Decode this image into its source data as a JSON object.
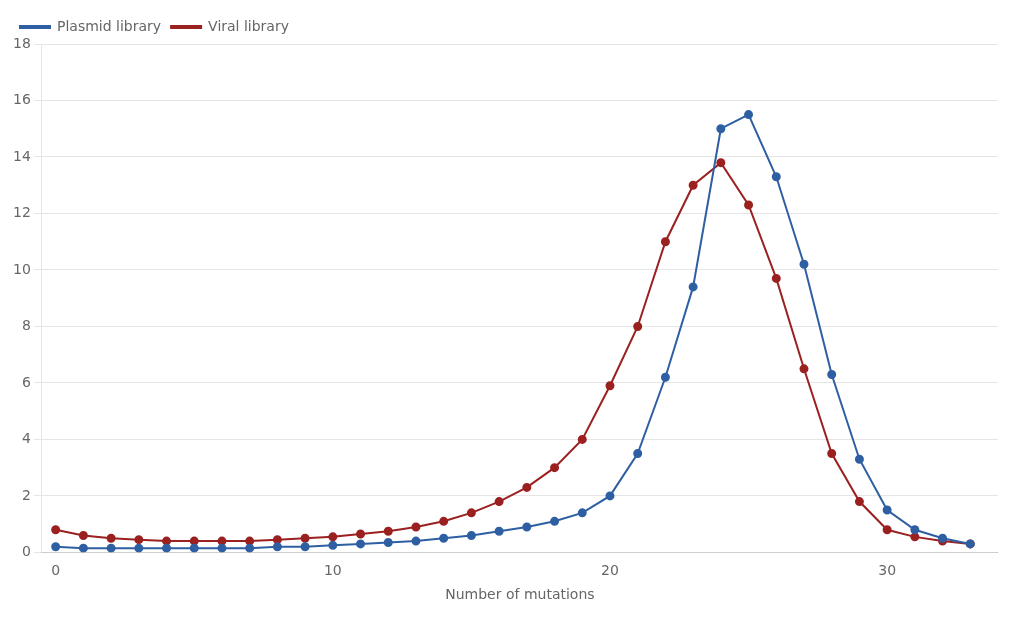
{
  "chart_data": {
    "type": "line",
    "xlabel": "Number of mutations",
    "x": [
      0,
      1,
      2,
      3,
      4,
      5,
      6,
      7,
      8,
      9,
      10,
      11,
      12,
      13,
      14,
      15,
      16,
      17,
      18,
      19,
      20,
      21,
      22,
      23,
      24,
      25,
      26,
      27,
      28,
      29,
      30,
      31,
      32,
      33
    ],
    "series": [
      {
        "name": "Plasmid library",
        "color": "#2e5fa3",
        "values": [
          0.2,
          0.15,
          0.15,
          0.15,
          0.15,
          0.15,
          0.15,
          0.15,
          0.2,
          0.2,
          0.25,
          0.3,
          0.35,
          0.4,
          0.5,
          0.6,
          0.75,
          0.9,
          1.1,
          1.4,
          2.0,
          3.5,
          6.2,
          9.4,
          15.0,
          15.5,
          13.3,
          10.2,
          6.3,
          3.3,
          1.5,
          0.8,
          0.5,
          0.3
        ]
      },
      {
        "name": "Viral library",
        "color": "#9b2020",
        "values": [
          0.8,
          0.6,
          0.5,
          0.45,
          0.4,
          0.4,
          0.4,
          0.4,
          0.45,
          0.5,
          0.55,
          0.65,
          0.75,
          0.9,
          1.1,
          1.4,
          1.8,
          2.3,
          3.0,
          4.0,
          5.9,
          8.0,
          11.0,
          13.0,
          13.8,
          12.3,
          9.7,
          6.5,
          3.5,
          1.8,
          0.8,
          0.55,
          0.4,
          0.3
        ]
      }
    ],
    "xlim": [
      -0.5,
      34
    ],
    "ylim": [
      0,
      18
    ],
    "xticks": [
      0,
      10,
      20,
      30
    ],
    "yticks": [
      0,
      2,
      4,
      6,
      8,
      10,
      12,
      14,
      16,
      18
    ],
    "grid": "y",
    "legend": "upper left",
    "marker": "circle",
    "line_style": "solid"
  }
}
